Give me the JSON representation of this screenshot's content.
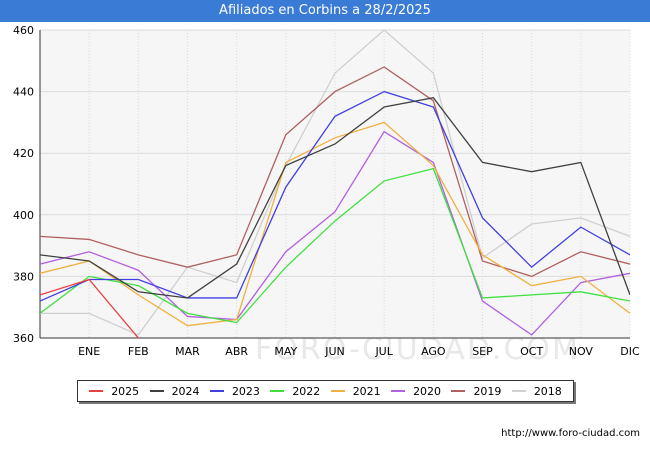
{
  "header": {
    "title": "Afiliados en Corbins a 28/2/2025"
  },
  "footer": {
    "url": "http://www.foro-ciudad.com"
  },
  "watermark": {
    "text": "FORO-CIUDAD.COM"
  },
  "chart_data": {
    "type": "line",
    "title": "Afiliados en Corbins a 28/2/2025",
    "xlabel": "",
    "ylabel": "",
    "categories": [
      "",
      "ENE",
      "FEB",
      "MAR",
      "ABR",
      "MAY",
      "JUN",
      "JUL",
      "AGO",
      "SEP",
      "OCT",
      "NOV",
      "DIC"
    ],
    "ylim": [
      360,
      460
    ],
    "yticks": [
      360,
      380,
      400,
      420,
      440,
      460
    ],
    "grid": true,
    "legend_position": "bottom",
    "series": [
      {
        "name": "2025",
        "color": "#e84040",
        "values": [
          374,
          379,
          360,
          null,
          null,
          null,
          null,
          null,
          null,
          null,
          null,
          null,
          null
        ]
      },
      {
        "name": "2024",
        "color": "#404040",
        "values": [
          387,
          385,
          375,
          373,
          384,
          416,
          423,
          435,
          438,
          417,
          414,
          417,
          374
        ]
      },
      {
        "name": "2023",
        "color": "#4040e0",
        "values": [
          372,
          379,
          379,
          373,
          373,
          409,
          432,
          440,
          435,
          399,
          383,
          396,
          387
        ]
      },
      {
        "name": "2022",
        "color": "#40e040",
        "values": [
          368,
          380,
          377,
          368,
          365,
          383,
          398,
          411,
          415,
          373,
          374,
          375,
          372
        ]
      },
      {
        "name": "2021",
        "color": "#f0b040",
        "values": [
          381,
          385,
          374,
          364,
          366,
          417,
          425,
          430,
          416,
          387,
          377,
          380,
          368
        ]
      },
      {
        "name": "2020",
        "color": "#b060e0",
        "values": [
          384,
          388,
          382,
          367,
          366,
          388,
          401,
          427,
          417,
          372,
          361,
          378,
          381
        ]
      },
      {
        "name": "2019",
        "color": "#b06060",
        "values": [
          393,
          392,
          387,
          383,
          387,
          426,
          440,
          448,
          437,
          385,
          380,
          388,
          384
        ]
      },
      {
        "name": "2018",
        "color": "#d0d0d0",
        "values": [
          368,
          368,
          361,
          383,
          378,
          416,
          446,
          460,
          446,
          386,
          397,
          399,
          393
        ]
      }
    ]
  }
}
